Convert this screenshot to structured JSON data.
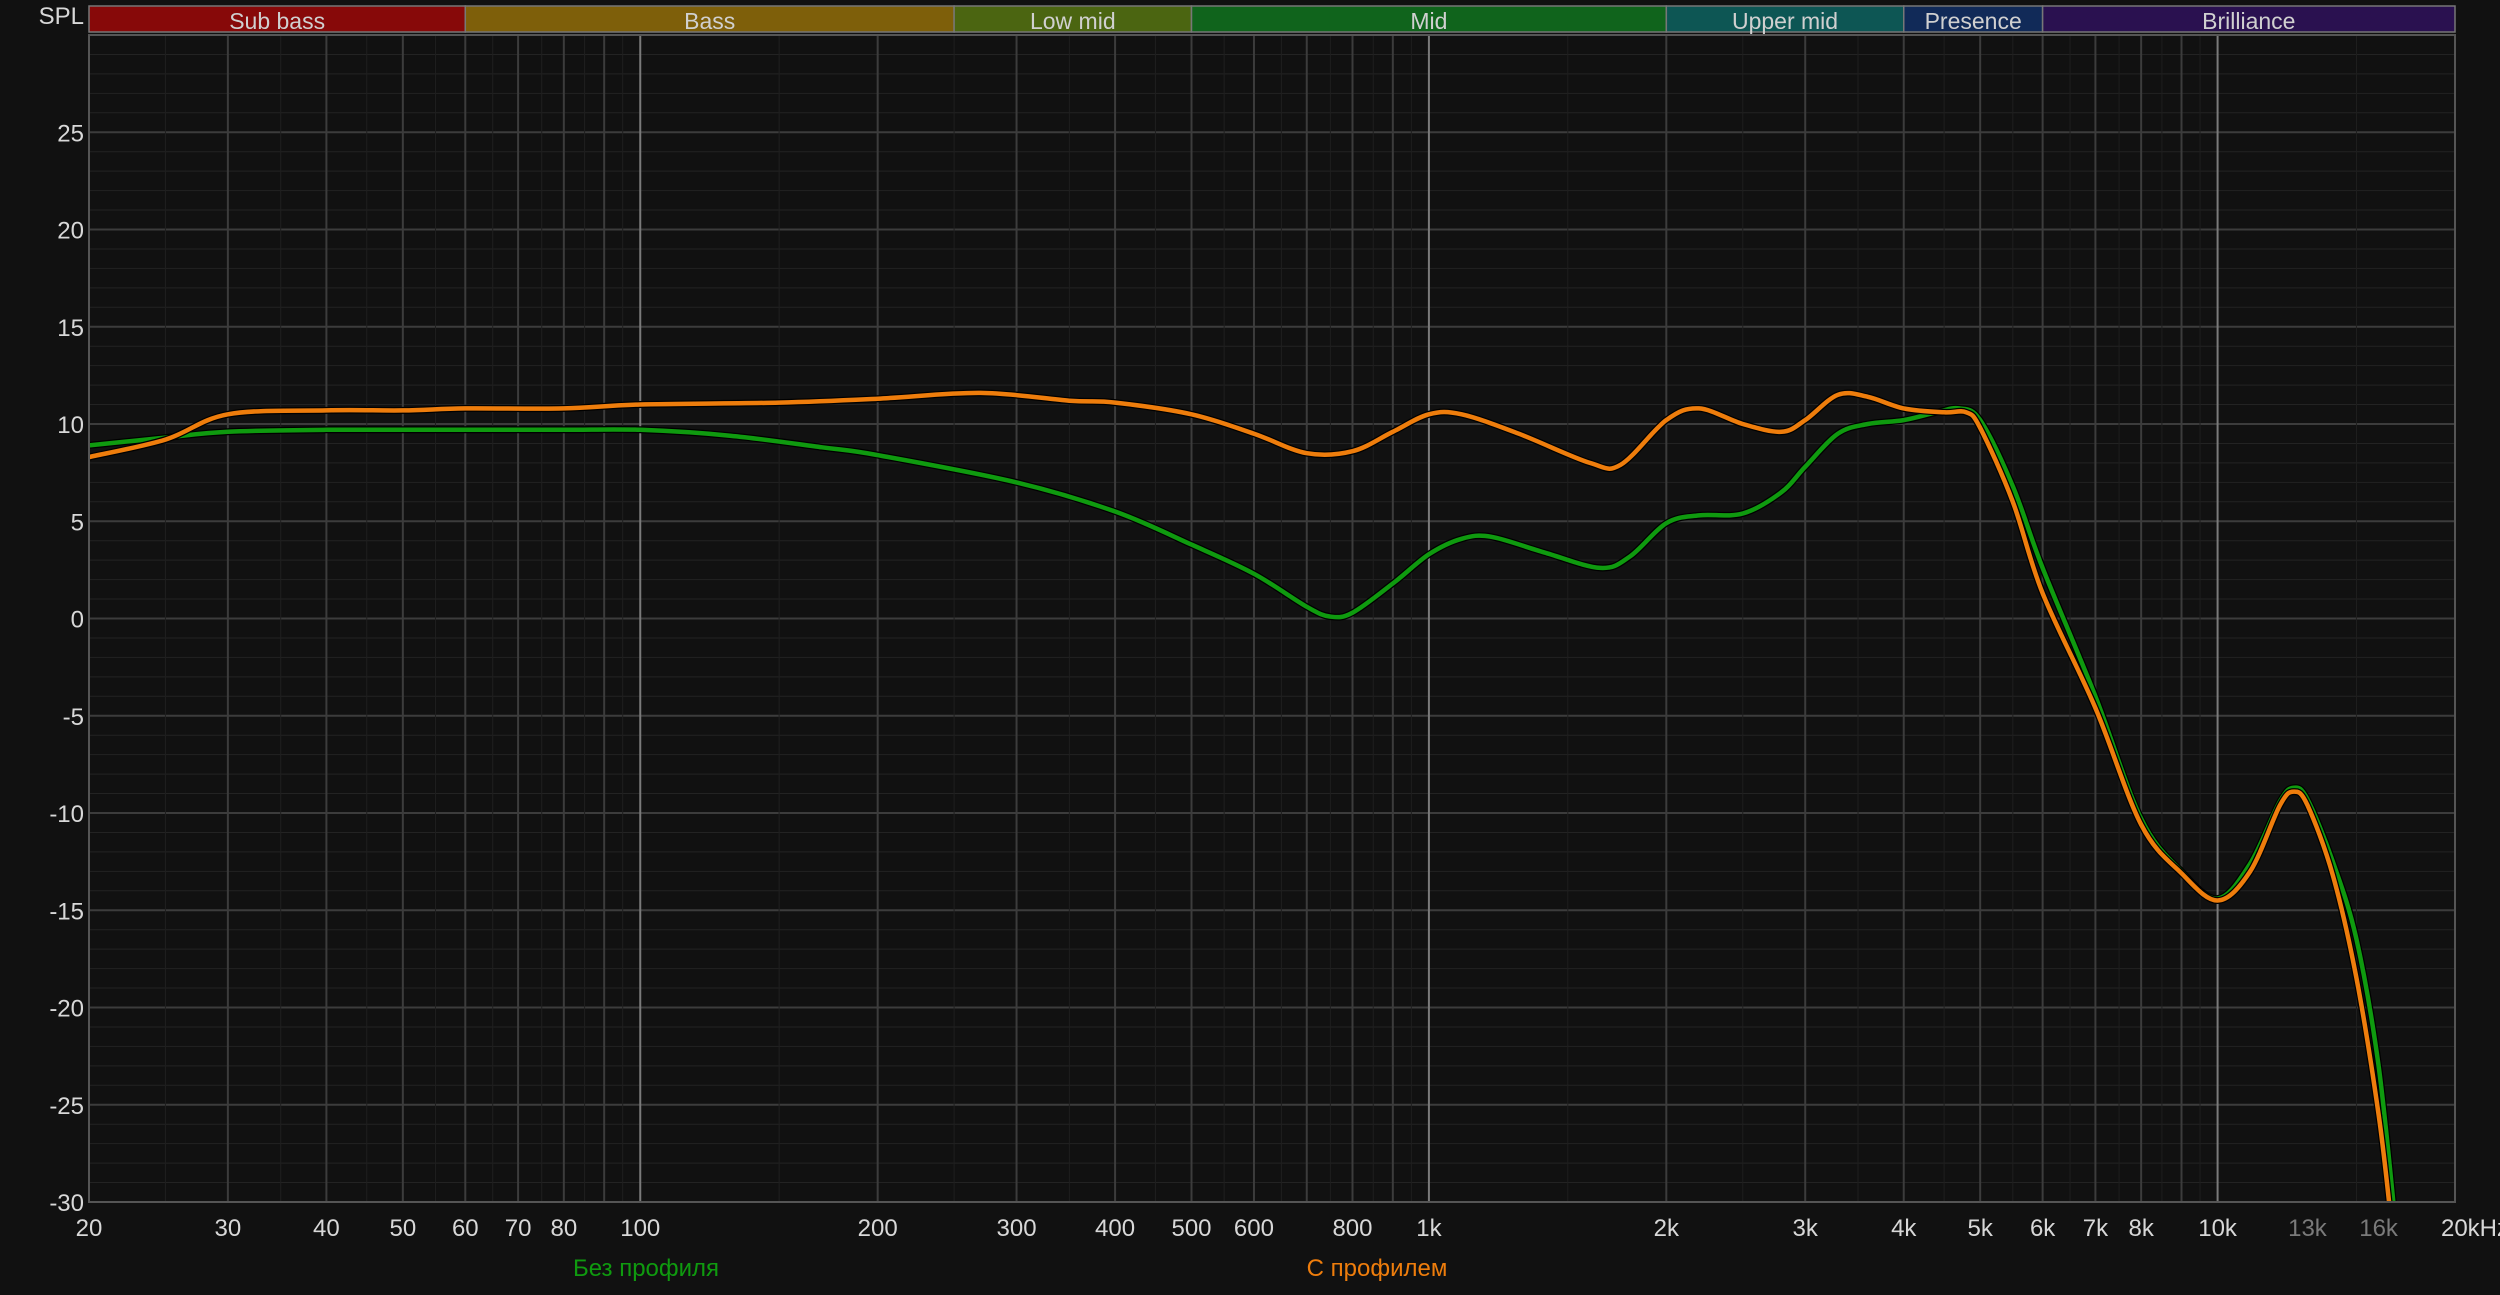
{
  "chart_data": {
    "type": "line",
    "ylabel": "SPL",
    "x_unit": "kHz",
    "xscale": "log",
    "xlim": [
      20,
      20000
    ],
    "ylim": [
      -30,
      30
    ],
    "grid": true,
    "y_ticks": [
      25,
      20,
      15,
      10,
      5,
      0,
      -5,
      -10,
      -15,
      -20,
      -25,
      -30
    ],
    "x_ticks": [
      {
        "f": 20,
        "label": "20"
      },
      {
        "f": 30,
        "label": "30"
      },
      {
        "f": 40,
        "label": "40"
      },
      {
        "f": 50,
        "label": "50"
      },
      {
        "f": 60,
        "label": "60"
      },
      {
        "f": 70,
        "label": "70"
      },
      {
        "f": 80,
        "label": "80"
      },
      {
        "f": 100,
        "label": "100"
      },
      {
        "f": 200,
        "label": "200"
      },
      {
        "f": 300,
        "label": "300"
      },
      {
        "f": 400,
        "label": "400"
      },
      {
        "f": 500,
        "label": "500"
      },
      {
        "f": 600,
        "label": "600"
      },
      {
        "f": 800,
        "label": "800"
      },
      {
        "f": 1000,
        "label": "1k"
      },
      {
        "f": 2000,
        "label": "2k"
      },
      {
        "f": 3000,
        "label": "3k"
      },
      {
        "f": 4000,
        "label": "4k"
      },
      {
        "f": 5000,
        "label": "5k"
      },
      {
        "f": 6000,
        "label": "6k"
      },
      {
        "f": 7000,
        "label": "7k"
      },
      {
        "f": 8000,
        "label": "8k"
      },
      {
        "f": 10000,
        "label": "10k"
      },
      {
        "f": 13000,
        "label": "13k",
        "dim": true
      },
      {
        "f": 16000,
        "label": "16k",
        "dim": true
      },
      {
        "f": 20000,
        "label": "20kHz"
      }
    ],
    "bands": [
      {
        "name": "Sub bass",
        "from": 20,
        "to": 60,
        "color": "#870909"
      },
      {
        "name": "Bass",
        "from": 60,
        "to": 250,
        "color": "#7e5f0a"
      },
      {
        "name": "Low mid",
        "from": 250,
        "to": 500,
        "color": "#4b6511"
      },
      {
        "name": "Mid",
        "from": 500,
        "to": 2000,
        "color": "#10641c"
      },
      {
        "name": "Upper mid",
        "from": 2000,
        "to": 4000,
        "color": "#0d5654"
      },
      {
        "name": "Presence",
        "from": 4000,
        "to": 6000,
        "color": "#112a58"
      },
      {
        "name": "Brilliance",
        "from": 6000,
        "to": 20000,
        "color": "#2a1150"
      }
    ],
    "series": [
      {
        "name": "Без профиля",
        "color": "#0f9a0f",
        "x": [
          20,
          25,
          30,
          40,
          60,
          80,
          100,
          130,
          170,
          200,
          300,
          400,
          500,
          600,
          700,
          750,
          800,
          900,
          1000,
          1100,
          1200,
          1400,
          1650,
          1800,
          2000,
          2200,
          2500,
          2800,
          3000,
          3300,
          3600,
          4000,
          4400,
          4700,
          5000,
          5500,
          6000,
          7000,
          8000,
          9000,
          10000,
          11000,
          12000,
          12500,
          13000,
          14000,
          15000,
          16000,
          16800
        ],
        "values": [
          8.9,
          9.3,
          9.6,
          9.7,
          9.7,
          9.7,
          9.7,
          9.4,
          8.8,
          8.4,
          7.0,
          5.5,
          3.8,
          2.3,
          0.6,
          0.1,
          0.3,
          1.8,
          3.3,
          4.1,
          4.2,
          3.4,
          2.6,
          3.2,
          4.9,
          5.3,
          5.4,
          6.5,
          7.8,
          9.5,
          10.0,
          10.2,
          10.6,
          10.8,
          10.2,
          6.8,
          2.6,
          -4.0,
          -10.3,
          -13.0,
          -14.4,
          -12.6,
          -9.4,
          -8.7,
          -9.3,
          -12.5,
          -16.5,
          -23.0,
          -31.0
        ]
      },
      {
        "name": "С профилем",
        "color": "#ee7d0c",
        "x": [
          20,
          25,
          30,
          40,
          50,
          60,
          80,
          100,
          150,
          200,
          270,
          350,
          400,
          500,
          600,
          700,
          800,
          900,
          1000,
          1100,
          1300,
          1600,
          1750,
          2000,
          2200,
          2500,
          2800,
          3000,
          3300,
          3600,
          4000,
          4500,
          4800,
          5000,
          5500,
          6000,
          7000,
          8000,
          9000,
          10000,
          11000,
          12000,
          12500,
          13000,
          14000,
          15000,
          16000,
          16600
        ],
        "values": [
          8.3,
          9.2,
          10.5,
          10.7,
          10.7,
          10.8,
          10.8,
          11.0,
          11.1,
          11.3,
          11.6,
          11.2,
          11.1,
          10.5,
          9.5,
          8.5,
          8.6,
          9.6,
          10.5,
          10.5,
          9.5,
          8.0,
          7.9,
          10.2,
          10.8,
          10.0,
          9.6,
          10.2,
          11.5,
          11.4,
          10.8,
          10.6,
          10.6,
          9.8,
          6.0,
          1.3,
          -4.6,
          -10.6,
          -13.1,
          -14.5,
          -13.0,
          -9.6,
          -8.9,
          -9.6,
          -13.2,
          -18.5,
          -25.5,
          -31.0
        ]
      }
    ]
  }
}
